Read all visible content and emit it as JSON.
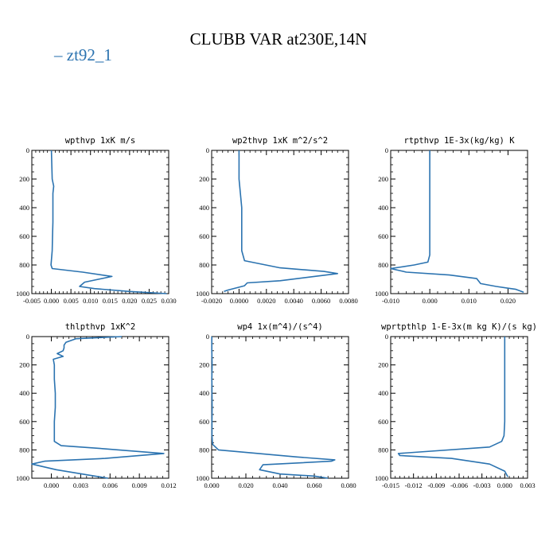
{
  "figure": {
    "title": "CLUBB VAR at230E,14N",
    "legend": [
      {
        "label": "zt92_1",
        "color": "#2b73b0"
      }
    ]
  },
  "chart_data": [
    {
      "type": "line",
      "title": "wpthvp  1xK m/s",
      "xlabel": "",
      "ylabel": "",
      "xlim": [
        -0.005,
        0.03
      ],
      "ylim": [
        1000,
        0
      ],
      "xticks": [
        "-0.005",
        "0.000",
        "0.005",
        "0.010",
        "0.015",
        "0.020",
        "0.025",
        "0.030"
      ],
      "yticks": [
        "0",
        "200",
        "400",
        "600",
        "800",
        "1000"
      ],
      "series": [
        {
          "name": "zt92_1",
          "x": [
            0.0,
            0.0001,
            0.0002,
            0.0006,
            0.0004,
            0.0004,
            0.0004,
            0.0003,
            0.0002,
            -0.0001,
            0.0002,
            0.008,
            0.0155,
            0.0085,
            0.0072,
            0.011,
            0.02,
            0.0295
          ],
          "y": [
            0,
            100,
            200,
            250,
            300,
            400,
            500,
            600,
            700,
            800,
            825,
            850,
            880,
            920,
            950,
            965,
            985,
            1000
          ]
        }
      ]
    },
    {
      "type": "line",
      "title": "wp2thvp  1xK m^2/s^2",
      "xlabel": "",
      "ylabel": "",
      "xlim": [
        -0.002,
        0.008
      ],
      "ylim": [
        1000,
        0
      ],
      "xticks": [
        "-0.0020",
        "0.0000",
        "0.0020",
        "0.0040",
        "0.0060",
        "0.0080"
      ],
      "yticks": [
        "0",
        "200",
        "400",
        "600",
        "800",
        "1000"
      ],
      "series": [
        {
          "name": "zt92_1",
          "x": [
            0.0,
            0.0,
            0.0001,
            0.0002,
            0.0002,
            0.0002,
            0.0002,
            0.0004,
            0.003,
            0.0062,
            0.0072,
            0.0055,
            0.003,
            0.0006,
            0.0004,
            -0.0008,
            -0.0011
          ],
          "y": [
            0,
            200,
            300,
            400,
            500,
            600,
            700,
            770,
            820,
            845,
            860,
            880,
            910,
            925,
            945,
            975,
            985
          ]
        }
      ]
    },
    {
      "type": "line",
      "title": "rtpthvp  1E-3x(kg/kg) K",
      "xlabel": "",
      "ylabel": "",
      "xlim": [
        -0.01,
        0.025
      ],
      "ylim": [
        1000,
        0
      ],
      "xticks": [
        "-0.010",
        "0.000",
        "0.010",
        "0.020"
      ],
      "yticks": [
        "0",
        "200",
        "400",
        "600",
        "800",
        "1000"
      ],
      "series": [
        {
          "name": "zt92_1",
          "x": [
            0.0,
            0.0,
            0.0,
            0.0,
            0.0,
            -0.0005,
            -0.004,
            -0.01,
            -0.006,
            0.005,
            0.012,
            0.013,
            0.017,
            0.022,
            0.024
          ],
          "y": [
            0,
            200,
            400,
            600,
            730,
            780,
            800,
            825,
            850,
            870,
            895,
            930,
            950,
            970,
            990
          ]
        }
      ]
    },
    {
      "type": "line",
      "title": "thlpthvp  1xK^2",
      "xlabel": "",
      "ylabel": "",
      "xlim": [
        -0.002,
        0.012
      ],
      "ylim": [
        1000,
        0
      ],
      "xticks": [
        "0.000",
        "0.003",
        "0.006",
        "0.009",
        "0.012"
      ],
      "yticks": [
        "0",
        "200",
        "400",
        "600",
        "800",
        "1000"
      ],
      "series": [
        {
          "name": "zt92_1",
          "x": [
            0.0072,
            0.0025,
            0.0015,
            0.0013,
            0.0013,
            0.0012,
            0.0006,
            0.0012,
            0.0002,
            0.0003,
            0.0003,
            0.0004,
            0.0004,
            0.0003,
            0.0003,
            0.0003,
            0.001,
            0.005,
            0.0115,
            0.0055,
            -0.0007,
            -0.002,
            0.0005,
            0.004,
            0.0058
          ],
          "y": [
            0,
            15,
            40,
            60,
            80,
            100,
            120,
            140,
            160,
            200,
            300,
            400,
            500,
            600,
            700,
            740,
            770,
            790,
            825,
            860,
            880,
            900,
            940,
            980,
            1000
          ]
        }
      ]
    },
    {
      "type": "line",
      "title": "wp4  1x(m^4)/(s^4)",
      "xlabel": "",
      "ylabel": "",
      "xlim": [
        0.0,
        0.08
      ],
      "ylim": [
        1000,
        0
      ],
      "xticks": [
        "0.000",
        "0.020",
        "0.040",
        "0.060",
        "0.080"
      ],
      "yticks": [
        "0",
        "200",
        "400",
        "600",
        "800",
        "1000"
      ],
      "series": [
        {
          "name": "zt92_1",
          "x": [
            0.0001,
            0.0001,
            0.0002,
            0.0003,
            0.0002,
            0.0001,
            0.0002,
            0.0002,
            0.0003,
            0.0002,
            0.0002,
            0.0005,
            0.004,
            0.05,
            0.072,
            0.07,
            0.03,
            0.028,
            0.04,
            0.06,
            0.068
          ],
          "y": [
            0,
            100,
            150,
            200,
            250,
            300,
            350,
            400,
            500,
            600,
            700,
            760,
            800,
            850,
            870,
            880,
            905,
            940,
            970,
            985,
            1000
          ]
        }
      ]
    },
    {
      "type": "line",
      "title": "wprtpthlp  1-E-3x(m kg K)/(s kg)",
      "xlabel": "",
      "ylabel": "",
      "xlim": [
        -0.015,
        0.003
      ],
      "ylim": [
        1000,
        0
      ],
      "xticks": [
        "-0.015",
        "-0.012",
        "-0.009",
        "-0.006",
        "-0.003",
        "0.000",
        "0.003"
      ],
      "yticks": [
        "0",
        "200",
        "400",
        "600",
        "800",
        "1000"
      ],
      "series": [
        {
          "name": "zt92_1",
          "x": [
            0.0,
            0.0,
            0.0,
            0.0,
            -0.0001,
            -0.0004,
            -0.002,
            -0.014,
            -0.0138,
            -0.007,
            -0.002,
            0.0,
            0.0004
          ],
          "y": [
            0,
            200,
            400,
            600,
            700,
            740,
            780,
            825,
            840,
            860,
            900,
            950,
            990
          ]
        }
      ]
    }
  ]
}
